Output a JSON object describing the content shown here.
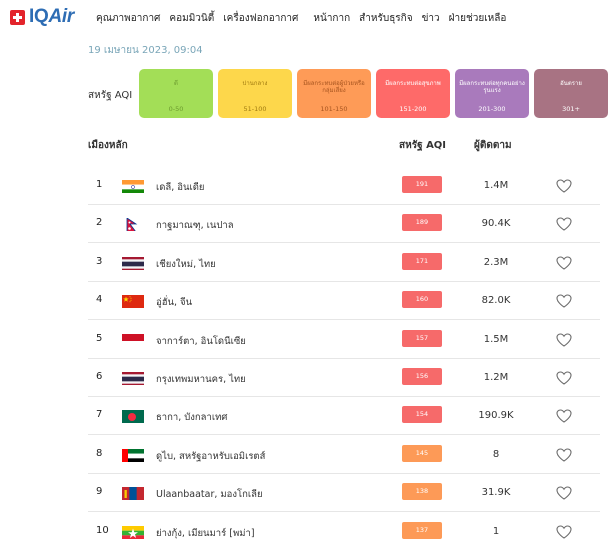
{
  "brand": {
    "name_prefix": "IQ",
    "name_suffix": "Air"
  },
  "nav": {
    "items": [
      {
        "label": "คุณภาพอากาศ"
      },
      {
        "label": "คอมมิวนิตี้"
      },
      {
        "label": "เครื่องฟอกอากาศ"
      },
      {
        "label": "หน้ากาก"
      },
      {
        "label": "สำหรับธุรกิจ"
      },
      {
        "label": "ข่าว"
      },
      {
        "label": "ฝ่ายช่วยเหลือ"
      }
    ]
  },
  "date": "19 เมษายน 2023, 09:04",
  "legend": {
    "label": "สหรัฐ AQI",
    "levels": [
      {
        "text": "ดี",
        "range": "0-50",
        "color": "#a3de57",
        "text_color": "#6c9b2f"
      },
      {
        "text": "ปานกลาง",
        "range": "51-100",
        "color": "#fdd74b",
        "text_color": "#a07b10"
      },
      {
        "text": "มีผลกระทบต่อผู้ป่วยหรือกลุ่มเสี่ยง",
        "range": "101-150",
        "color": "#fe9b57",
        "text_color": "#a6541f"
      },
      {
        "text": "มีผลกระทบต่อสุขภาพ",
        "range": "151-200",
        "color": "#fe6a69",
        "text_color": "#ffffff"
      },
      {
        "text": "มีผลกระทบต่อทุกคนอย่างรุนแรง",
        "range": "201-300",
        "color": "#a97abc",
        "text_color": "#ffffff"
      },
      {
        "text": "อันตราย",
        "range": "301+",
        "color": "#a87383",
        "text_color": "#ffffff"
      }
    ]
  },
  "table": {
    "headers": {
      "city": "เมืองหลัก",
      "aqi": "สหรัฐ AQI",
      "followers": "ผู้ติดตาม"
    },
    "rows": [
      {
        "rank": "1",
        "flag": "india",
        "city": "เดลี, อินเดีย",
        "aqi": "191",
        "badge_color": "#f66a6a",
        "followers": "1.4M"
      },
      {
        "rank": "2",
        "flag": "nepal",
        "city": "กาฐมาณฑุ, เนปาล",
        "aqi": "189",
        "badge_color": "#f66a6a",
        "followers": "90.4K"
      },
      {
        "rank": "3",
        "flag": "thailand",
        "city": "เชียงใหม่, ไทย",
        "aqi": "171",
        "badge_color": "#f66a6a",
        "followers": "2.3M"
      },
      {
        "rank": "4",
        "flag": "china",
        "city": "อู่ฮั่น, จีน",
        "aqi": "160",
        "badge_color": "#f66a6a",
        "followers": "82.0K"
      },
      {
        "rank": "5",
        "flag": "indonesia",
        "city": "จาการ์ตา, อินโดนีเซีย",
        "aqi": "157",
        "badge_color": "#f66a6a",
        "followers": "1.5M"
      },
      {
        "rank": "6",
        "flag": "thailand",
        "city": "กรุงเทพมหานคร, ไทย",
        "aqi": "156",
        "badge_color": "#f66a6a",
        "followers": "1.2M"
      },
      {
        "rank": "7",
        "flag": "bangladesh",
        "city": "ธากา, บังกลาเทศ",
        "aqi": "154",
        "badge_color": "#f66a6a",
        "followers": "190.9K"
      },
      {
        "rank": "8",
        "flag": "uae",
        "city": "ดูไบ, สหรัฐอาหรับเอมิเรตส์",
        "aqi": "145",
        "badge_color": "#fd9a57",
        "followers": "8"
      },
      {
        "rank": "9",
        "flag": "mongolia",
        "city": "Ulaanbaatar, มองโกเลีย",
        "aqi": "138",
        "badge_color": "#fd9a57",
        "followers": "31.9K"
      },
      {
        "rank": "10",
        "flag": "myanmar",
        "city": "ย่างกุ้ง, เมียนมาร์ [พม่า]",
        "aqi": "137",
        "badge_color": "#fd9a57",
        "followers": "1"
      }
    ]
  },
  "icons": {
    "heart": "heart-outline-icon",
    "swiss_flag": "swiss-flag-icon"
  }
}
